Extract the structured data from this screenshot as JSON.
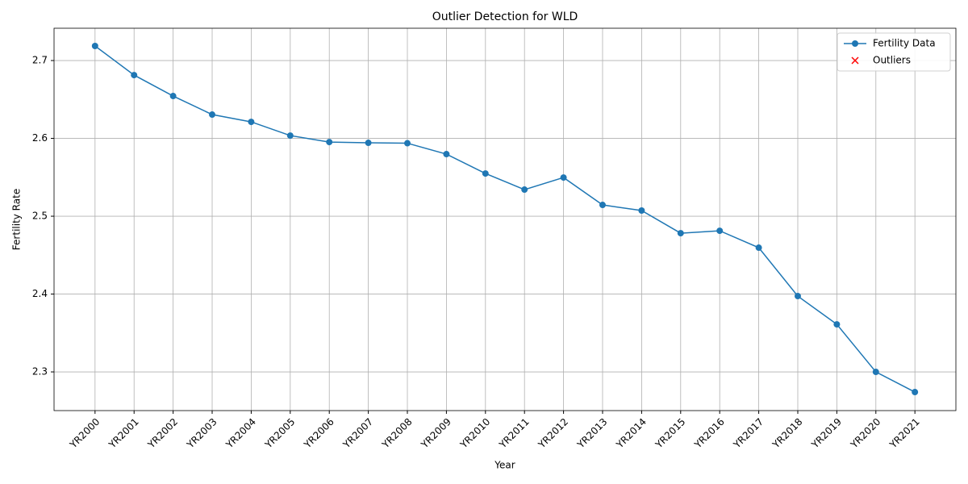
{
  "chart_data": {
    "type": "line",
    "title": "Outlier Detection for WLD",
    "x_label": "Year",
    "y_label": "Fertility Rate",
    "categories": [
      "YR2000",
      "YR2001",
      "YR2002",
      "YR2003",
      "YR2004",
      "YR2005",
      "YR2006",
      "YR2007",
      "YR2008",
      "YR2009",
      "YR2010",
      "YR2011",
      "YR2012",
      "YR2013",
      "YR2014",
      "YR2015",
      "YR2016",
      "YR2017",
      "YR2018",
      "YR2019",
      "YR2020",
      "YR2021"
    ],
    "series": [
      {
        "name": "Fertility Data",
        "color": "#1f77b4",
        "values": [
          2.7187,
          2.6813,
          2.6544,
          2.6306,
          2.6212,
          2.6036,
          2.5953,
          2.5943,
          2.5938,
          2.5798,
          2.5549,
          2.5342,
          2.5497,
          2.5145,
          2.5073,
          2.4782,
          2.4813,
          2.4596,
          2.3974,
          2.3611,
          2.3,
          2.2741
        ]
      },
      {
        "name": "Outliers",
        "color": "#ff0000",
        "values": [
          null,
          null,
          null,
          null,
          null,
          null,
          null,
          null,
          null,
          null,
          null,
          null,
          null,
          null,
          null,
          null,
          null,
          null,
          null,
          null,
          null,
          null
        ]
      }
    ],
    "ylim": [
      2.2503,
      2.7415
    ],
    "yticks": [
      2.3,
      2.4,
      2.5,
      2.6,
      2.7
    ],
    "grid": true,
    "legend": "upper right"
  }
}
